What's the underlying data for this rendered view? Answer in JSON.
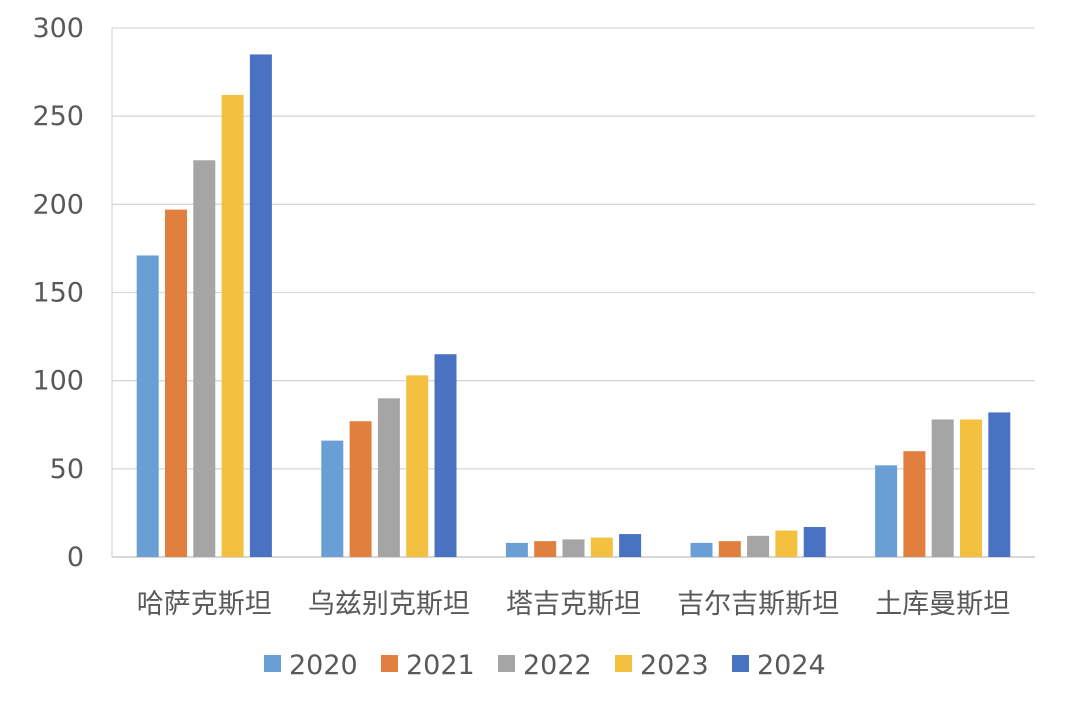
{
  "chart_data": {
    "type": "bar",
    "categories": [
      "哈萨克斯坦",
      "乌兹别克斯坦",
      "塔吉克斯坦",
      "吉尔吉斯斯坦",
      "土库曼斯坦"
    ],
    "series": [
      {
        "name": "2020",
        "color": "#6A9FD6",
        "values": [
          171,
          66,
          8,
          8,
          52
        ]
      },
      {
        "name": "2021",
        "color": "#E07F3E",
        "values": [
          197,
          77,
          9,
          9,
          60
        ]
      },
      {
        "name": "2022",
        "color": "#A5A5A5",
        "values": [
          225,
          90,
          10,
          12,
          78
        ]
      },
      {
        "name": "2023",
        "color": "#F4C040",
        "values": [
          262,
          103,
          11,
          15,
          78
        ]
      },
      {
        "name": "2024",
        "color": "#4A72C2",
        "values": [
          285,
          115,
          13,
          17,
          82
        ]
      }
    ],
    "y_ticks": [
      "0",
      "50",
      "100",
      "150",
      "200",
      "250",
      "300"
    ],
    "ylim": [
      0,
      300
    ],
    "grid": true,
    "legend_position": "bottom",
    "title": "",
    "xlabel": "",
    "ylabel": ""
  }
}
